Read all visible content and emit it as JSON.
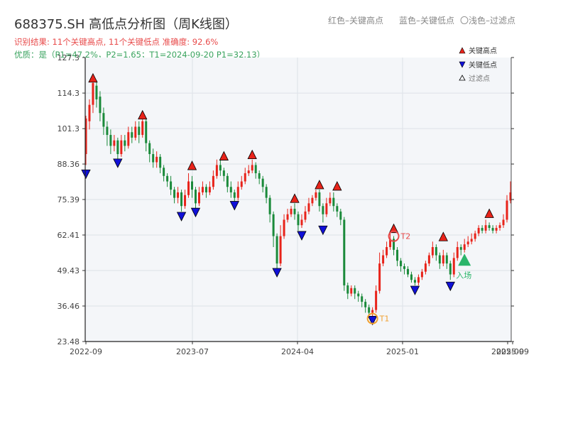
{
  "header": {
    "title": "688375.SH 高低点分析图（周K线图）",
    "hint_red": "红色–关键高点",
    "hint_blue": "蓝色–关键低点",
    "hint_hollow": "〇浅色–过滤点",
    "result_line": "识别结果: 11个关键高点, 11个关键低点   准确度: 92.6%",
    "quality_line": "优质：是（P1=47.2%，P2=1.65；T1=2024-09-20 P1=32.13）"
  },
  "legend": {
    "high_label": "关键高点",
    "low_label": "关键低点",
    "filtered_label": "过滤点"
  },
  "colors": {
    "up": "#e8231a",
    "down": "#1a8a3a",
    "high_marker": "#e8231a",
    "low_marker": "#1010d8",
    "t_circle": "#f0a030",
    "t2_color": "#e84a4a",
    "entry": "#2bb56a"
  },
  "chart_data": {
    "type": "candlestick",
    "title": "688375.SH 高低点分析图（周K线图）",
    "y_ticks": [
      "23.48",
      "36.46",
      "49.43",
      "62.41",
      "75.39",
      "88.36",
      "101.3",
      "114.3",
      "127.3"
    ],
    "ylim": [
      23.48,
      127.3
    ],
    "x_ticks": [
      "2022-09",
      "2023-07",
      "2024-04",
      "2025-01",
      "2025-09",
      "2025-09"
    ],
    "grid": true,
    "key_highs": [
      {
        "week": 2,
        "value": 117.5
      },
      {
        "week": 16,
        "value": 104.0
      },
      {
        "week": 30,
        "value": 85.5
      },
      {
        "week": 39,
        "value": 89.0
      },
      {
        "week": 47,
        "value": 89.5
      },
      {
        "week": 59,
        "value": 73.5
      },
      {
        "week": 66,
        "value": 78.5
      },
      {
        "week": 71,
        "value": 78.0
      },
      {
        "week": 87,
        "value": 62.5
      },
      {
        "week": 101,
        "value": 59.5
      },
      {
        "week": 114,
        "value": 68.0
      }
    ],
    "key_lows": [
      {
        "week": 0,
        "value": 87.0
      },
      {
        "week": 9,
        "value": 91.0
      },
      {
        "week": 27,
        "value": 71.5
      },
      {
        "week": 31,
        "value": 73.0
      },
      {
        "week": 42,
        "value": 75.5
      },
      {
        "week": 54,
        "value": 51.0
      },
      {
        "week": 61,
        "value": 64.5
      },
      {
        "week": 67,
        "value": 66.5
      },
      {
        "week": 81,
        "value": 33.5
      },
      {
        "week": 93,
        "value": 44.5
      },
      {
        "week": 103,
        "value": 46.0
      }
    ],
    "points": [
      {
        "label": "T1",
        "week": 81,
        "value": 32.13
      },
      {
        "label": "T2",
        "week": 87,
        "value": 62.5
      }
    ],
    "entry": {
      "label": "入场",
      "week": 107,
      "value": 53.0
    },
    "candles": [
      [
        92,
        105,
        88,
        106
      ],
      [
        104,
        110,
        101,
        112
      ],
      [
        110,
        118,
        107,
        120
      ],
      [
        117,
        112,
        109,
        119
      ],
      [
        113,
        107,
        104,
        115
      ],
      [
        107,
        102,
        99,
        109
      ],
      [
        102,
        99,
        95,
        104
      ],
      [
        99,
        95,
        92,
        101
      ],
      [
        95,
        97,
        93,
        99
      ],
      [
        97,
        92,
        90,
        98
      ],
      [
        92,
        97,
        91,
        99
      ],
      [
        97,
        95,
        93,
        99
      ],
      [
        95,
        100,
        94,
        102
      ],
      [
        100,
        98,
        96,
        102
      ],
      [
        98,
        102,
        97,
        104
      ],
      [
        102,
        99,
        96,
        104
      ],
      [
        99,
        104,
        98,
        106
      ],
      [
        104,
        96,
        93,
        105
      ],
      [
        96,
        92,
        89,
        97
      ],
      [
        92,
        89,
        87,
        94
      ],
      [
        89,
        91,
        87,
        93
      ],
      [
        91,
        87,
        85,
        92
      ],
      [
        87,
        84,
        82,
        88
      ],
      [
        84,
        82,
        80,
        85
      ],
      [
        82,
        79,
        77,
        84
      ],
      [
        79,
        76,
        74,
        80
      ],
      [
        76,
        78,
        74,
        80
      ],
      [
        78,
        73,
        71,
        79
      ],
      [
        73,
        77,
        72,
        79
      ],
      [
        77,
        82,
        76,
        85
      ],
      [
        82,
        79,
        76,
        84
      ],
      [
        79,
        74,
        72,
        80
      ],
      [
        74,
        78,
        73,
        80
      ],
      [
        78,
        80,
        77,
        82
      ],
      [
        80,
        78,
        76,
        81
      ],
      [
        78,
        80,
        77,
        82
      ],
      [
        80,
        84,
        79,
        86
      ],
      [
        84,
        88,
        83,
        90
      ],
      [
        88,
        86,
        84,
        90
      ],
      [
        86,
        84,
        82,
        87
      ],
      [
        84,
        80,
        78,
        85
      ],
      [
        80,
        78,
        76,
        82
      ],
      [
        78,
        76,
        74,
        79
      ],
      [
        76,
        80,
        75,
        82
      ],
      [
        80,
        82,
        79,
        84
      ],
      [
        82,
        85,
        81,
        87
      ],
      [
        85,
        86,
        84,
        88
      ],
      [
        86,
        88,
        85,
        90
      ],
      [
        88,
        85,
        83,
        89
      ],
      [
        85,
        83,
        81,
        86
      ],
      [
        83,
        80,
        78,
        84
      ],
      [
        80,
        76,
        74,
        81
      ],
      [
        76,
        70,
        67,
        77
      ],
      [
        70,
        62,
        58,
        71
      ],
      [
        62,
        52,
        50,
        63
      ],
      [
        52,
        62,
        51,
        66
      ],
      [
        62,
        68,
        61,
        70
      ],
      [
        68,
        70,
        67,
        72
      ],
      [
        70,
        72,
        69,
        73
      ],
      [
        72,
        70,
        68,
        74
      ],
      [
        70,
        66,
        64,
        71
      ],
      [
        66,
        68,
        65,
        70
      ],
      [
        68,
        71,
        67,
        73
      ],
      [
        71,
        74,
        70,
        76
      ],
      [
        74,
        76,
        73,
        77
      ],
      [
        76,
        78,
        75,
        79
      ],
      [
        78,
        73,
        71,
        79
      ],
      [
        73,
        70,
        67,
        74
      ],
      [
        70,
        74,
        69,
        76
      ],
      [
        74,
        76,
        73,
        78
      ],
      [
        76,
        73,
        71,
        78
      ],
      [
        73,
        71,
        69,
        74
      ],
      [
        71,
        68,
        66,
        72
      ],
      [
        68,
        44,
        42,
        69
      ],
      [
        44,
        41,
        39,
        45
      ],
      [
        41,
        43,
        40,
        44
      ],
      [
        43,
        41,
        39,
        44
      ],
      [
        41,
        40,
        38,
        42
      ],
      [
        40,
        38,
        36,
        41
      ],
      [
        38,
        36,
        34,
        39
      ],
      [
        36,
        34,
        32,
        37
      ],
      [
        34,
        35,
        32.13,
        36
      ],
      [
        35,
        42,
        34,
        44
      ],
      [
        42,
        52,
        41,
        56
      ],
      [
        52,
        55,
        51,
        57
      ],
      [
        55,
        58,
        54,
        60
      ],
      [
        58,
        61,
        57,
        63
      ],
      [
        61,
        57,
        55,
        62
      ],
      [
        57,
        53,
        51,
        58
      ],
      [
        53,
        51,
        49,
        54
      ],
      [
        51,
        50,
        48,
        52
      ],
      [
        50,
        48,
        47,
        51
      ],
      [
        48,
        46,
        45,
        49
      ],
      [
        46,
        45,
        44,
        47
      ],
      [
        45,
        47,
        44,
        48
      ],
      [
        47,
        49,
        46,
        50
      ],
      [
        49,
        52,
        48,
        53
      ],
      [
        52,
        55,
        51,
        56
      ],
      [
        55,
        58,
        54,
        60
      ],
      [
        58,
        55,
        53,
        59
      ],
      [
        55,
        52,
        50,
        56
      ],
      [
        52,
        55,
        51,
        57
      ],
      [
        55,
        52,
        50,
        56
      ],
      [
        52,
        48,
        46,
        53
      ],
      [
        48,
        54,
        47,
        56
      ],
      [
        54,
        58,
        53,
        60
      ],
      [
        58,
        57,
        55,
        59
      ],
      [
        57,
        59,
        56,
        61
      ],
      [
        59,
        60,
        58,
        62
      ],
      [
        60,
        61,
        59,
        63
      ],
      [
        61,
        63,
        60,
        64
      ],
      [
        63,
        65,
        62,
        66
      ],
      [
        65,
        64,
        63,
        66
      ],
      [
        64,
        66,
        63,
        68
      ],
      [
        66,
        65,
        64,
        67
      ],
      [
        65,
        64,
        63,
        66
      ],
      [
        64,
        65,
        63,
        66
      ],
      [
        65,
        66,
        64,
        67
      ],
      [
        66,
        68,
        65,
        70
      ],
      [
        68,
        75,
        67,
        77
      ],
      [
        75,
        78,
        74,
        82
      ]
    ]
  }
}
